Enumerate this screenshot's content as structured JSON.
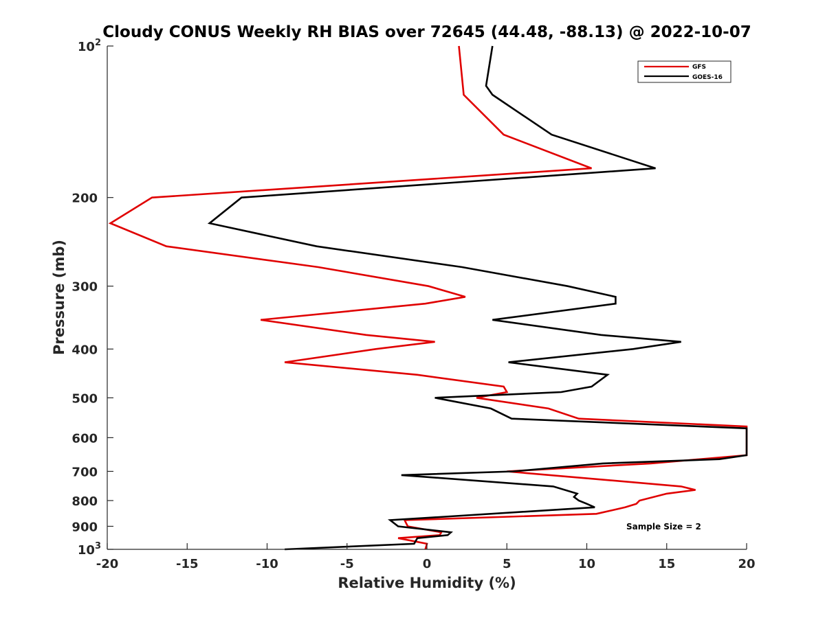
{
  "chart_data": {
    "type": "line",
    "title": "Cloudy CONUS Weekly RH BIAS over 72645 (44.48, -88.13) @ 2022-10-07",
    "xlabel": "Relative Humidity (%)",
    "ylabel": "Pressure (mb)",
    "xlim": [
      -20,
      20
    ],
    "ylim": [
      100,
      1000
    ],
    "yscale": "log",
    "y_reversed": true,
    "grid": false,
    "legend_position": "top-right",
    "annotation": "Sample Size = 2",
    "x_ticks": [
      {
        "value": -20,
        "label": "-20"
      },
      {
        "value": -15,
        "label": "-15"
      },
      {
        "value": -10,
        "label": "-10"
      },
      {
        "value": -5,
        "label": "-5"
      },
      {
        "value": 0,
        "label": "0"
      },
      {
        "value": 5,
        "label": "5"
      },
      {
        "value": 10,
        "label": "10"
      },
      {
        "value": 15,
        "label": "15"
      },
      {
        "value": 20,
        "label": "20"
      }
    ],
    "y_ticks": [
      {
        "value": 100,
        "base": "10",
        "exp": "2"
      },
      {
        "value": 200,
        "label": "200"
      },
      {
        "value": 300,
        "label": "300"
      },
      {
        "value": 400,
        "label": "400"
      },
      {
        "value": 500,
        "label": "500"
      },
      {
        "value": 600,
        "label": "600"
      },
      {
        "value": 700,
        "label": "700"
      },
      {
        "value": 800,
        "label": "800"
      },
      {
        "value": 900,
        "label": "900"
      },
      {
        "value": 1000,
        "base": "10",
        "exp": "3"
      }
    ],
    "series": [
      {
        "name": "GFS",
        "color": "#e00000",
        "points": [
          [
            2.0,
            100
          ],
          [
            2.3,
            125
          ],
          [
            4.8,
            150
          ],
          [
            10.3,
            175
          ],
          [
            -17.2,
            200
          ],
          [
            -19.8,
            225
          ],
          [
            -16.3,
            250
          ],
          [
            -6.8,
            275
          ],
          [
            0.1,
            300
          ],
          [
            2.4,
            315
          ],
          [
            -0.1,
            325
          ],
          [
            -10.4,
            350
          ],
          [
            -3.8,
            375
          ],
          [
            0.5,
            387
          ],
          [
            -3.2,
            400
          ],
          [
            -8.9,
            425
          ],
          [
            -0.6,
            450
          ],
          [
            4.8,
            475
          ],
          [
            5.0,
            487
          ],
          [
            3.1,
            500
          ],
          [
            7.6,
            525
          ],
          [
            9.5,
            550
          ],
          [
            20,
            570
          ],
          [
            20,
            650
          ],
          [
            14.0,
            675
          ],
          [
            5.0,
            700
          ],
          [
            15.9,
            750
          ],
          [
            16.8,
            762
          ],
          [
            15.0,
            775
          ],
          [
            13.3,
            800
          ],
          [
            13.1,
            812
          ],
          [
            12.4,
            825
          ],
          [
            10.6,
            850
          ],
          [
            -1.4,
            875
          ],
          [
            -1.2,
            900
          ],
          [
            0.9,
            925
          ],
          [
            0.8,
            937
          ],
          [
            -1.8,
            950
          ],
          [
            0.0,
            975
          ],
          [
            -0.1,
            1000
          ]
        ]
      },
      {
        "name": "GOES-16",
        "color": "#000000",
        "points": [
          [
            4.1,
            100
          ],
          [
            3.7,
            120
          ],
          [
            4.1,
            125
          ],
          [
            7.8,
            150
          ],
          [
            14.3,
            175
          ],
          [
            -11.6,
            200
          ],
          [
            -13.6,
            225
          ],
          [
            -6.9,
            250
          ],
          [
            2.2,
            275
          ],
          [
            8.8,
            300
          ],
          [
            11.8,
            315
          ],
          [
            11.8,
            325
          ],
          [
            4.1,
            350
          ],
          [
            10.9,
            375
          ],
          [
            15.9,
            387
          ],
          [
            12.9,
            400
          ],
          [
            5.1,
            425
          ],
          [
            11.3,
            450
          ],
          [
            10.3,
            475
          ],
          [
            8.4,
            487
          ],
          [
            0.5,
            500
          ],
          [
            4.0,
            525
          ],
          [
            5.3,
            550
          ],
          [
            20,
            575
          ],
          [
            20,
            650
          ],
          [
            18.3,
            662
          ],
          [
            11.0,
            675
          ],
          [
            5.4,
            700
          ],
          [
            -1.6,
            712
          ],
          [
            7.9,
            750
          ],
          [
            9.4,
            775
          ],
          [
            9.2,
            787
          ],
          [
            9.5,
            800
          ],
          [
            10.0,
            812
          ],
          [
            10.5,
            825
          ],
          [
            -2.3,
            875
          ],
          [
            -1.8,
            900
          ],
          [
            1.5,
            925
          ],
          [
            1.3,
            937
          ],
          [
            -0.6,
            950
          ],
          [
            -0.8,
            975
          ],
          [
            -8.9,
            1000
          ]
        ]
      }
    ]
  }
}
